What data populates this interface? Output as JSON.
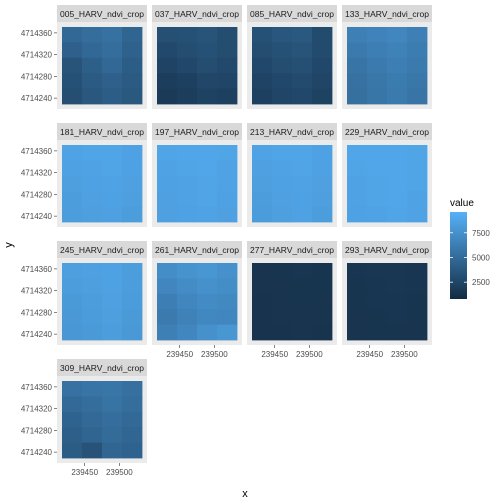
{
  "chart_data": {
    "type": "heatmap",
    "title": "",
    "xlabel": "x",
    "ylabel": "y",
    "legend": {
      "title": "value",
      "ticks": [
        "2500",
        "5000",
        "7500"
      ],
      "tick_values": [
        2500,
        5000,
        7500
      ],
      "range": [
        800,
        9600
      ],
      "low_color": "#132b43",
      "high_color": "#56b1f7",
      "position": "right"
    },
    "x_tick_labels": [
      "239450",
      "239500"
    ],
    "y_tick_labels": [
      "4714360",
      "4714320",
      "4714280",
      "4714240"
    ],
    "panels": [
      {
        "name": "005_HARV_ndvi_crop",
        "grid": [
          [
            4800,
            5200,
            5400,
            4600
          ],
          [
            4300,
            4800,
            5200,
            4400
          ],
          [
            3500,
            4200,
            4800,
            4100
          ],
          [
            3300,
            3900,
            4300,
            3900
          ],
          [
            3100,
            3700,
            4100,
            3800
          ]
        ]
      },
      {
        "name": "037_HARV_ndvi_crop",
        "grid": [
          [
            3200,
            3300,
            3500,
            3000
          ],
          [
            2800,
            3000,
            3300,
            3000
          ],
          [
            2400,
            2700,
            3000,
            2800
          ],
          [
            2000,
            2200,
            2600,
            2500
          ],
          [
            1800,
            2000,
            2300,
            2200
          ]
        ]
      },
      {
        "name": "085_HARV_ndvi_crop",
        "grid": [
          [
            3300,
            3600,
            3800,
            2900
          ],
          [
            3000,
            3300,
            3500,
            2900
          ],
          [
            2700,
            3000,
            3200,
            2700
          ],
          [
            2400,
            2700,
            2900,
            2500
          ],
          [
            2200,
            2500,
            2700,
            2300
          ]
        ]
      },
      {
        "name": "133_HARV_ndvi_crop",
        "grid": [
          [
            6400,
            6600,
            6800,
            6400
          ],
          [
            6000,
            6300,
            6500,
            6200
          ],
          [
            5600,
            6000,
            6300,
            6000
          ],
          [
            5400,
            5800,
            6100,
            5800
          ],
          [
            5300,
            5700,
            6000,
            5600
          ]
        ]
      },
      {
        "name": "181_HARV_ndvi_crop",
        "grid": [
          [
            8700,
            8800,
            8800,
            8600
          ],
          [
            8600,
            8700,
            8800,
            8600
          ],
          [
            8400,
            8600,
            8700,
            8500
          ],
          [
            8300,
            8500,
            8600,
            8400
          ],
          [
            8300,
            8400,
            8500,
            8300
          ]
        ]
      },
      {
        "name": "197_HARV_ndvi_crop",
        "grid": [
          [
            8800,
            8900,
            8900,
            8800
          ],
          [
            8700,
            8800,
            8900,
            8700
          ],
          [
            8600,
            8700,
            8800,
            8700
          ],
          [
            8500,
            8700,
            8800,
            8600
          ],
          [
            8500,
            8600,
            8700,
            8500
          ]
        ]
      },
      {
        "name": "213_HARV_ndvi_crop",
        "grid": [
          [
            8700,
            8800,
            8800,
            8600
          ],
          [
            8500,
            8700,
            8800,
            8600
          ],
          [
            8400,
            8600,
            8700,
            8500
          ],
          [
            8300,
            8500,
            8600,
            8400
          ],
          [
            8200,
            8400,
            8600,
            8300
          ]
        ]
      },
      {
        "name": "229_HARV_ndvi_crop",
        "grid": [
          [
            8900,
            8900,
            8900,
            8800
          ],
          [
            8800,
            8900,
            8900,
            8800
          ],
          [
            8700,
            8800,
            8900,
            8800
          ],
          [
            8700,
            8800,
            8900,
            8700
          ],
          [
            8600,
            8700,
            8800,
            8700
          ]
        ]
      },
      {
        "name": "245_HARV_ndvi_crop",
        "grid": [
          [
            8400,
            8500,
            8600,
            8300
          ],
          [
            8300,
            8400,
            8600,
            8300
          ],
          [
            8100,
            8300,
            8500,
            8200
          ],
          [
            8000,
            8200,
            8400,
            8100
          ],
          [
            7900,
            8100,
            8300,
            8000
          ]
        ]
      },
      {
        "name": "261_HARV_ndvi_crop",
        "grid": [
          [
            7300,
            7600,
            7800,
            7500
          ],
          [
            6800,
            7200,
            7500,
            7300
          ],
          [
            6300,
            6800,
            7100,
            7000
          ],
          [
            6000,
            6500,
            6900,
            6800
          ],
          [
            6400,
            6800,
            7500,
            7800
          ]
        ]
      },
      {
        "name": "277_HARV_ndvi_crop",
        "grid": [
          [
            1400,
            1450,
            1500,
            1450
          ],
          [
            1400,
            1400,
            1450,
            1450
          ],
          [
            1350,
            1400,
            1450,
            1400
          ],
          [
            1350,
            1400,
            1400,
            1400
          ],
          [
            1300,
            1350,
            1400,
            1350
          ]
        ]
      },
      {
        "name": "293_HARV_ndvi_crop",
        "grid": [
          [
            1500,
            1550,
            1550,
            1500
          ],
          [
            1450,
            1500,
            1550,
            1500
          ],
          [
            1450,
            1500,
            1500,
            1450
          ],
          [
            1400,
            1450,
            1500,
            1450
          ],
          [
            1400,
            1450,
            1450,
            1400
          ]
        ]
      },
      {
        "name": "309_HARV_ndvi_crop",
        "grid": [
          [
            5400,
            5600,
            5700,
            5300
          ],
          [
            4900,
            5200,
            5500,
            5200
          ],
          [
            4500,
            4900,
            5200,
            4900
          ],
          [
            4200,
            4600,
            5000,
            4700
          ],
          [
            4000,
            3400,
            4700,
            4500
          ]
        ]
      }
    ]
  }
}
